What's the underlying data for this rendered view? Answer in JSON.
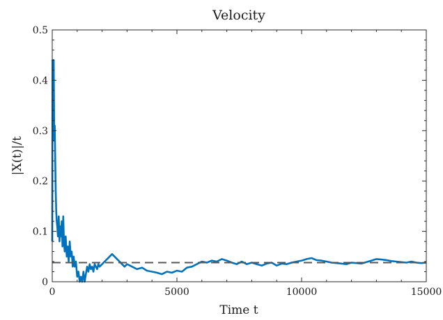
{
  "chart_data": {
    "type": "line",
    "title": "Velocity",
    "xlabel": "Time t",
    "ylabel": "|X(t)|/t",
    "xlim": [
      0,
      15000
    ],
    "ylim": [
      0,
      0.5
    ],
    "xticks": [
      "0",
      "5000",
      "10000",
      "15000"
    ],
    "yticks": [
      "0",
      "0.1",
      "0.2",
      "0.3",
      "0.4",
      "0.5"
    ],
    "grid": false,
    "box": true,
    "series": [
      {
        "color": "#0072BD",
        "style": "solid",
        "x": [
          0,
          10,
          20,
          40,
          60,
          80,
          100,
          120,
          140,
          160,
          180,
          200,
          230,
          260,
          290,
          320,
          350,
          380,
          410,
          440,
          470,
          500,
          540,
          580,
          620,
          660,
          700,
          740,
          780,
          820,
          860,
          900,
          950,
          1000,
          1050,
          1100,
          1150,
          1200,
          1250,
          1300,
          1350,
          1400,
          1450,
          1500,
          1550,
          1600,
          1650,
          1700,
          1750,
          1800,
          1850,
          1900,
          2000,
          2100,
          2200,
          2300,
          2400,
          2500,
          2600,
          2700,
          2800,
          2900,
          3000,
          3200,
          3400,
          3600,
          3800,
          4000,
          4200,
          4400,
          4600,
          4800,
          5000,
          5200,
          5400,
          5600,
          5800,
          6000,
          6200,
          6400,
          6600,
          6800,
          7000,
          7200,
          7400,
          7600,
          7800,
          8000,
          8200,
          8400,
          8600,
          8800,
          9000,
          9200,
          9400,
          9600,
          9800,
          10000,
          10200,
          10400,
          10600,
          10800,
          11000,
          11200,
          11400,
          11600,
          11800,
          12000,
          12200,
          12400,
          12600,
          12800,
          13000,
          13200,
          13400,
          13600,
          13800,
          14000,
          14200,
          14400,
          14600,
          14800,
          15000
        ],
        "y": [
          0.08,
          0.44,
          0.43,
          0.44,
          0.44,
          0.28,
          0.31,
          0.24,
          0.18,
          0.14,
          0.12,
          0.11,
          0.09,
          0.13,
          0.08,
          0.11,
          0.09,
          0.12,
          0.07,
          0.13,
          0.08,
          0.06,
          0.09,
          0.05,
          0.07,
          0.04,
          0.08,
          0.05,
          0.06,
          0.03,
          0.05,
          0.03,
          0.04,
          0.01,
          0.02,
          0.0,
          0.01,
          0.0,
          0.02,
          0.0,
          0.015,
          0.03,
          0.02,
          0.035,
          0.025,
          0.03,
          0.02,
          0.035,
          0.03,
          0.025,
          0.035,
          0.03,
          0.035,
          0.04,
          0.045,
          0.05,
          0.055,
          0.05,
          0.045,
          0.04,
          0.035,
          0.03,
          0.035,
          0.03,
          0.025,
          0.028,
          0.022,
          0.02,
          0.018,
          0.015,
          0.02,
          0.018,
          0.022,
          0.02,
          0.028,
          0.03,
          0.035,
          0.04,
          0.038,
          0.042,
          0.04,
          0.045,
          0.042,
          0.038,
          0.035,
          0.04,
          0.035,
          0.038,
          0.035,
          0.032,
          0.036,
          0.038,
          0.032,
          0.036,
          0.035,
          0.038,
          0.04,
          0.042,
          0.045,
          0.047,
          0.043,
          0.042,
          0.04,
          0.038,
          0.037,
          0.036,
          0.035,
          0.038,
          0.037,
          0.036,
          0.039,
          0.042,
          0.045,
          0.044,
          0.043,
          0.041,
          0.04,
          0.039,
          0.038,
          0.04,
          0.038,
          0.037,
          0.038
        ]
      },
      {
        "color": "#555555",
        "style": "dashed",
        "x": [
          0,
          15000
        ],
        "y": [
          0.038,
          0.038
        ]
      }
    ]
  }
}
